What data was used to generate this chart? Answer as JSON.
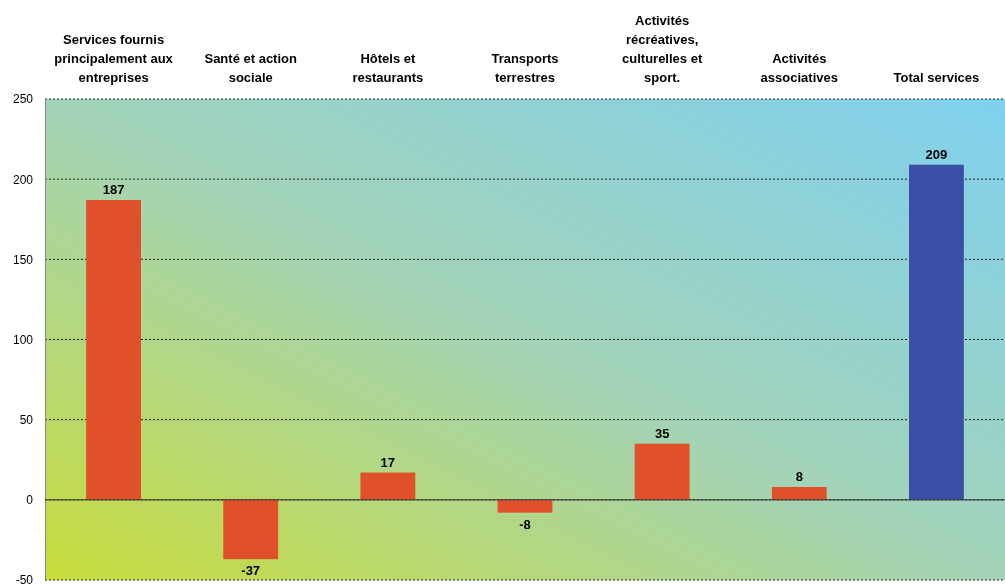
{
  "chart_data": {
    "type": "bar",
    "categories": [
      "Services fournis principalement aux entreprises",
      "Santé et action sociale",
      "Hôtels et restaurants",
      "Transports terrestres",
      "Activités récréatives, culturelles et sport.",
      "Activités associatives",
      "Total services"
    ],
    "values": [
      187,
      -37,
      17,
      -8,
      35,
      8,
      209
    ],
    "colors": [
      "#e0502a",
      "#e0502a",
      "#e0502a",
      "#e0502a",
      "#e0502a",
      "#e0502a",
      "#3c4fa6"
    ],
    "ylim": [
      -50,
      250
    ],
    "yticks": [
      -50,
      0,
      50,
      100,
      150,
      200,
      250
    ],
    "grid": "y",
    "data_labels": true
  }
}
